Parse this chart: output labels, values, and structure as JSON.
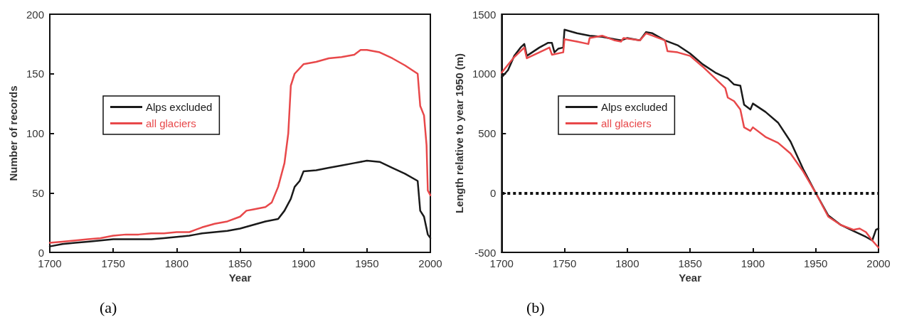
{
  "chart_data": [
    {
      "type": "line",
      "xlabel": "Year",
      "ylabel": "Number of records",
      "xlim": [
        1700,
        2000
      ],
      "xticks": [
        1700,
        1750,
        1800,
        1850,
        1900,
        1950,
        2000
      ],
      "ylim": [
        0,
        200
      ],
      "yticks": [
        0,
        50,
        100,
        150,
        200
      ],
      "grid": false,
      "legend": "left",
      "marker": "none",
      "line_style": "solid",
      "annotations": [
        "(a)"
      ],
      "series": [
        {
          "name": "Alps excluded",
          "color": "#1a1a1a",
          "x": [
            1700,
            1710,
            1720,
            1730,
            1740,
            1750,
            1760,
            1770,
            1780,
            1790,
            1800,
            1810,
            1815,
            1820,
            1830,
            1840,
            1850,
            1860,
            1870,
            1880,
            1885,
            1890,
            1893,
            1897,
            1900,
            1910,
            1920,
            1930,
            1940,
            1950,
            1960,
            1970,
            1980,
            1990,
            1992,
            1995,
            1998,
            2000
          ],
          "values": [
            5,
            7,
            8,
            9,
            10,
            11,
            11,
            11,
            11,
            12,
            13,
            14,
            15,
            16,
            17,
            18,
            20,
            23,
            26,
            28,
            35,
            45,
            55,
            60,
            68,
            69,
            71,
            73,
            75,
            77,
            76,
            71,
            66,
            60,
            35,
            30,
            15,
            12
          ]
        },
        {
          "name": "all glaciers",
          "color": "#e8484a",
          "x": [
            1700,
            1710,
            1720,
            1730,
            1740,
            1750,
            1760,
            1770,
            1780,
            1790,
            1800,
            1810,
            1815,
            1820,
            1830,
            1840,
            1850,
            1855,
            1860,
            1870,
            1875,
            1880,
            1885,
            1888,
            1890,
            1893,
            1900,
            1910,
            1920,
            1930,
            1940,
            1945,
            1950,
            1960,
            1970,
            1980,
            1990,
            1992,
            1995,
            1997,
            1998,
            2000
          ],
          "values": [
            8,
            9,
            10,
            11,
            12,
            14,
            15,
            15,
            16,
            16,
            17,
            17,
            19,
            21,
            24,
            26,
            30,
            35,
            36,
            38,
            42,
            55,
            75,
            100,
            140,
            150,
            158,
            160,
            163,
            164,
            166,
            170,
            170,
            168,
            163,
            157,
            150,
            123,
            115,
            90,
            52,
            48
          ]
        }
      ]
    },
    {
      "type": "line",
      "xlabel": "Year",
      "ylabel": "Length relative to year 1950 (m)",
      "xlim": [
        1700,
        2000
      ],
      "xticks": [
        1700,
        1750,
        1800,
        1850,
        1900,
        1950,
        2000
      ],
      "ylim": [
        -500,
        1500
      ],
      "yticks": [
        -500,
        0,
        500,
        1000,
        1500
      ],
      "grid": false,
      "legend": "left",
      "marker": "none",
      "line_style": "solid",
      "annotations": [
        "(b)"
      ],
      "ref_lines": [
        {
          "axis": "y",
          "value": 0,
          "label": null,
          "color": "#111111",
          "line_style": "dotted"
        }
      ],
      "series": [
        {
          "name": "Alps excluded",
          "color": "#1a1a1a",
          "x": [
            1700,
            1705,
            1710,
            1715,
            1718,
            1720,
            1730,
            1737,
            1740,
            1742,
            1745,
            1749,
            1750,
            1760,
            1770,
            1780,
            1790,
            1795,
            1800,
            1810,
            1815,
            1820,
            1830,
            1840,
            1850,
            1860,
            1870,
            1880,
            1885,
            1890,
            1893,
            1898,
            1900,
            1910,
            1920,
            1930,
            1940,
            1950,
            1960,
            1970,
            1980,
            1990,
            1995,
            1998,
            2000
          ],
          "values": [
            970,
            1030,
            1150,
            1220,
            1250,
            1150,
            1220,
            1260,
            1260,
            1180,
            1210,
            1220,
            1370,
            1340,
            1320,
            1310,
            1290,
            1280,
            1300,
            1280,
            1350,
            1340,
            1280,
            1240,
            1170,
            1080,
            1010,
            960,
            910,
            900,
            740,
            700,
            750,
            680,
            590,
            430,
            200,
            0,
            -190,
            -270,
            -320,
            -370,
            -400,
            -310,
            -300
          ]
        },
        {
          "name": "all glaciers",
          "color": "#e8484a",
          "x": [
            1700,
            1710,
            1718,
            1720,
            1730,
            1738,
            1740,
            1749,
            1750,
            1760,
            1769,
            1770,
            1780,
            1790,
            1795,
            1797,
            1810,
            1815,
            1820,
            1830,
            1832,
            1840,
            1850,
            1860,
            1870,
            1878,
            1880,
            1885,
            1890,
            1893,
            1898,
            1900,
            1910,
            1920,
            1930,
            1940,
            1950,
            1960,
            1970,
            1980,
            1985,
            1990,
            1995,
            2000
          ],
          "values": [
            1010,
            1140,
            1220,
            1130,
            1180,
            1220,
            1160,
            1180,
            1290,
            1270,
            1250,
            1300,
            1320,
            1280,
            1270,
            1300,
            1280,
            1340,
            1320,
            1280,
            1190,
            1180,
            1150,
            1060,
            960,
            880,
            800,
            770,
            700,
            550,
            520,
            550,
            470,
            420,
            330,
            180,
            0,
            -200,
            -270,
            -310,
            -300,
            -330,
            -400,
            -460
          ]
        }
      ]
    }
  ]
}
